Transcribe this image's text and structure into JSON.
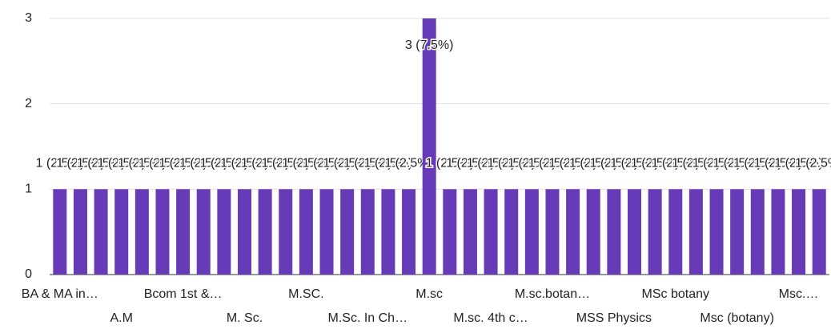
{
  "chart_data": {
    "type": "bar",
    "categories": [
      "BA & MA in…",
      null,
      null,
      "A.M",
      null,
      null,
      "Bcom 1st &…",
      null,
      null,
      "M. Sc.",
      null,
      null,
      "M.SC.",
      null,
      null,
      "M.Sc. In Ch…",
      null,
      null,
      "M.sc",
      null,
      null,
      "M.sc. 4th c…",
      null,
      null,
      "M.sc.botan…",
      null,
      null,
      "MSS Physics",
      null,
      null,
      "MSc botany",
      null,
      null,
      "Msc (botany)",
      null,
      null,
      "Msc.…",
      null
    ],
    "values": [
      1,
      1,
      1,
      1,
      1,
      1,
      1,
      1,
      1,
      1,
      1,
      1,
      1,
      1,
      1,
      1,
      1,
      1,
      3,
      1,
      1,
      1,
      1,
      1,
      1,
      1,
      1,
      1,
      1,
      1,
      1,
      1,
      1,
      1,
      1,
      1,
      1,
      1
    ],
    "value_labels": [
      "1 (2.5%)",
      "1 (2.5%)",
      "1 (2.5%)",
      "1 (2.5%)",
      "1 (2.5%)",
      "1 (2.5%)",
      "1 (2.5%)",
      "1 (2.5%)",
      "1 (2.5%)",
      "1 (2.5%)",
      "1 (2.5%)",
      "1 (2.5%)",
      "1 (2.5%)",
      "1 (2.5%)",
      "1 (2.5%)",
      "1 (2.5%)",
      "1 (2.5%)",
      "1 (2.5%)",
      "3 (7.5%)",
      "1 (2.5%)",
      "1 (2.5%)",
      "1 (2.5%)",
      "1 (2.5%)",
      "1 (2.5%)",
      "1 (2.5%)",
      "1 (2.5%)",
      "1 (2.5%)",
      "1 (2.5%)",
      "1 (2.5%)",
      "1 (2.5%)",
      "1 (2.5%)",
      "1 (2.5%)",
      "1 (2.5%)",
      "1 (2.5%)",
      "1 (2.5%)",
      "1 (2.5%)",
      "1 (2.5%)",
      "1 (2.5%)"
    ],
    "color": "#673ab7",
    "ylim": [
      0,
      3
    ],
    "yticks": [
      0,
      1,
      2,
      3
    ],
    "grid": true
  }
}
